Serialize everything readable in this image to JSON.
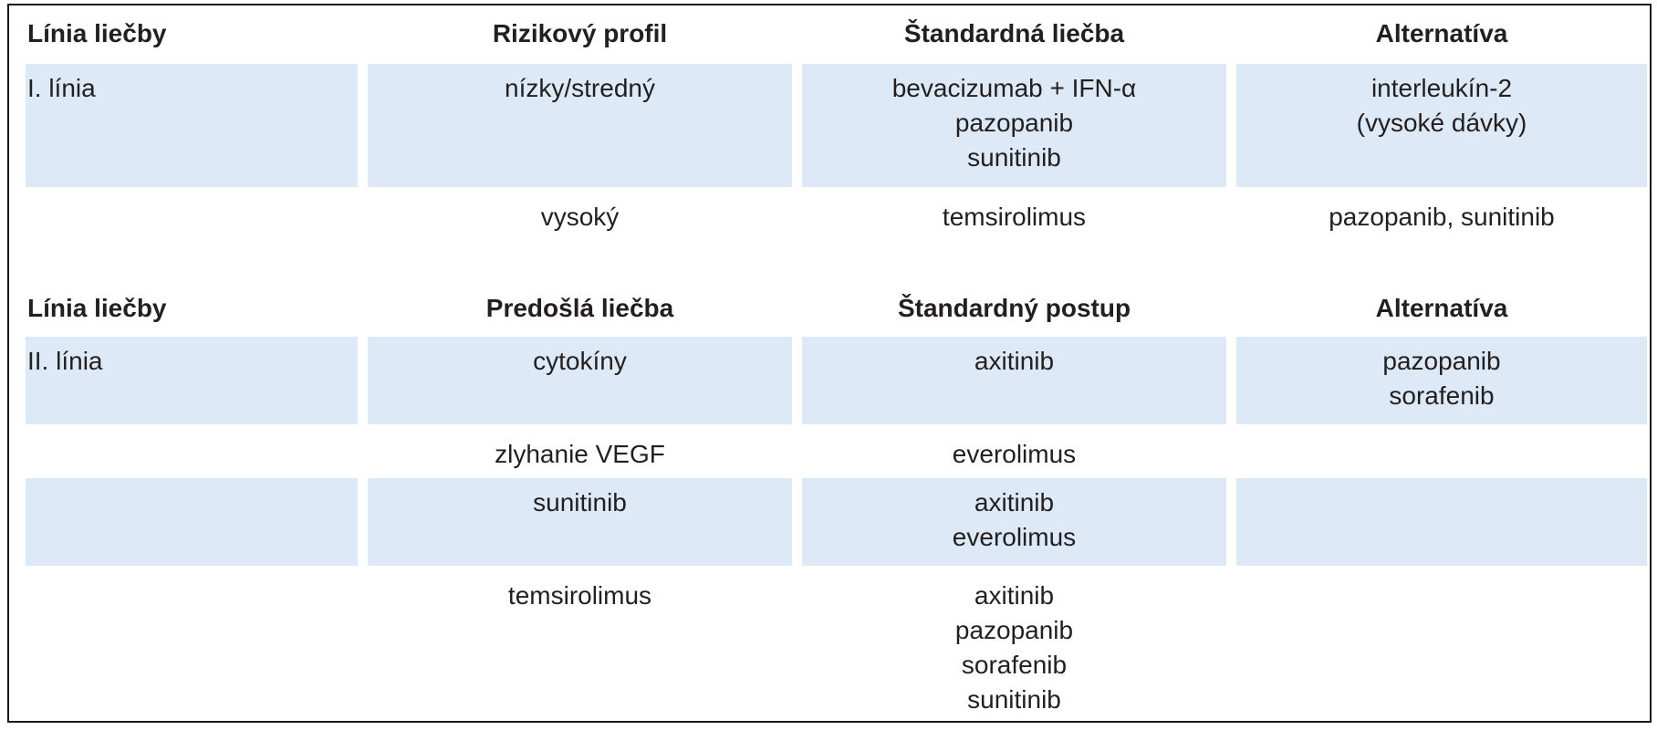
{
  "table1": {
    "headers": [
      "Línia liečby",
      "Rizikový profil",
      "Štandardná liečba",
      "Alternatíva"
    ],
    "rows": [
      {
        "line": "I. línia",
        "profile": "nízky/stredný",
        "standard": [
          "bevacizumab + IFN-α",
          "pazopanib",
          "sunitinib"
        ],
        "alternative": [
          "interleukín-2",
          "(vysoké dávky)"
        ]
      },
      {
        "line": "",
        "profile": "vysoký",
        "standard": [
          "temsirolimus"
        ],
        "alternative": [
          "pazopanib, sunitinib"
        ]
      }
    ]
  },
  "table2": {
    "headers": [
      "Línia liečby",
      "Predošlá liečba",
      "Štandardný postup",
      "Alternatíva"
    ],
    "rows": [
      {
        "line": "II. línia",
        "previous": "cytokíny",
        "standard": [
          "axitinib"
        ],
        "alternative": [
          "pazopanib",
          "sorafenib"
        ]
      },
      {
        "line": "",
        "previous": "zlyhanie VEGF",
        "standard": [
          "everolimus"
        ],
        "alternative": []
      },
      {
        "line": "",
        "previous": "sunitinib",
        "standard": [
          "axitinib",
          "everolimus"
        ],
        "alternative": []
      },
      {
        "line": "",
        "previous": "temsirolimus",
        "standard": [
          "axitinib",
          "pazopanib",
          "sorafenib",
          "sunitinib"
        ],
        "alternative": []
      }
    ]
  }
}
